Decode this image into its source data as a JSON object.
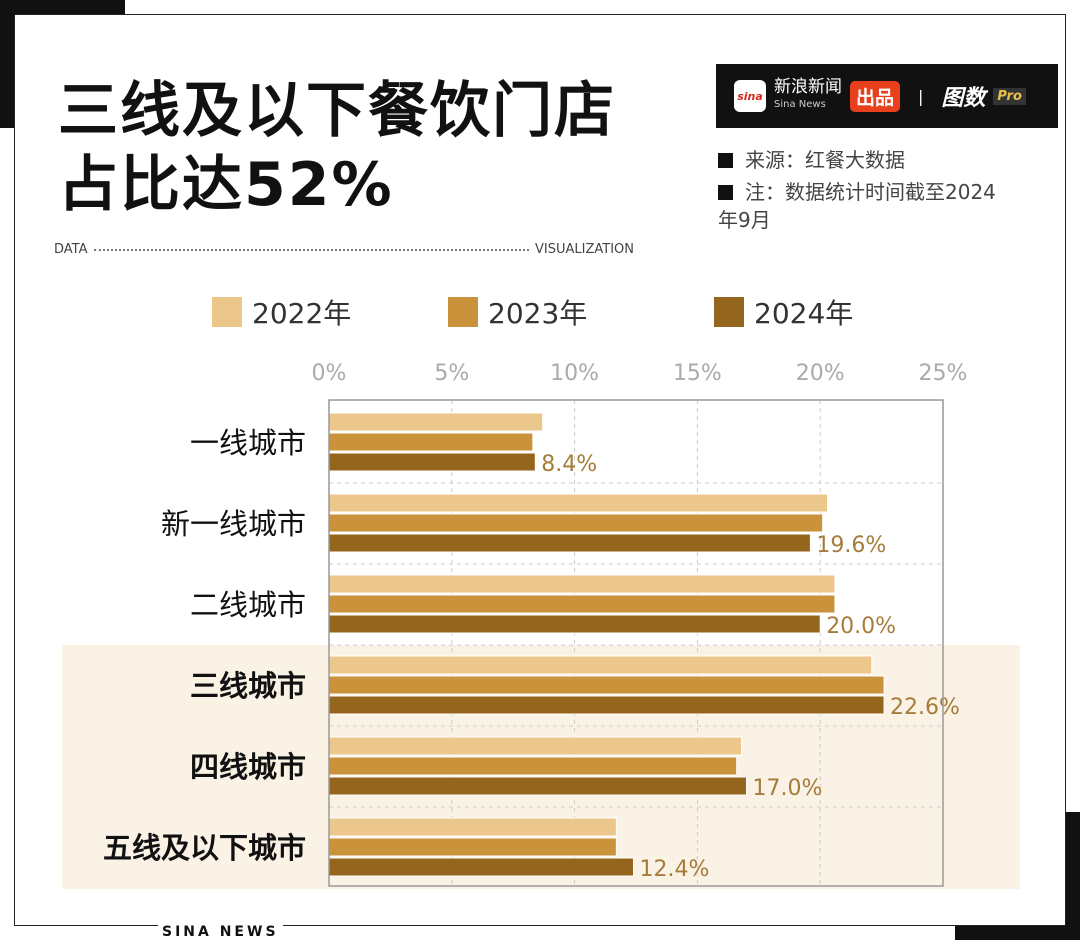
{
  "title_lines": [
    "三线及以下餐饮门店",
    "占比达52%"
  ],
  "data_label": "DATA",
  "visualization_label": "VISUALIZATION",
  "brand": {
    "sina_logo": "sina",
    "name_cn": "新浪新闻",
    "name_en": "Sina News",
    "badge": "出品",
    "sep": "|",
    "partner": "图数",
    "partner_suffix": "Pro"
  },
  "notes": [
    "来源：红餐大数据",
    "注：数据统计时间截至2024",
    "年9月"
  ],
  "footer": "SINA NEWS",
  "colors": {
    "2022年": "#ecc78c",
    "2023年": "#c9923b",
    "2024年": "#94651c",
    "label": "#a67c3a",
    "highlight_band": "#fbf2e6"
  },
  "chart_data": {
    "type": "bar",
    "orientation": "horizontal",
    "categories": [
      "一线城市",
      "新一线城市",
      "二线城市",
      "三线城市",
      "四线城市",
      "五线及以下城市"
    ],
    "highlighted_categories": [
      "三线城市",
      "四线城市",
      "五线及以下城市"
    ],
    "series": [
      {
        "name": "2022年",
        "values": [
          8.7,
          20.3,
          20.6,
          22.1,
          16.8,
          11.7
        ]
      },
      {
        "name": "2023年",
        "values": [
          8.3,
          20.1,
          20.6,
          22.6,
          16.6,
          11.7
        ]
      },
      {
        "name": "2024年",
        "values": [
          8.4,
          19.6,
          20.0,
          22.6,
          17.0,
          12.4
        ]
      }
    ],
    "data_labels": [
      "8.4%",
      "19.6%",
      "20.0%",
      "22.6%",
      "17.0%",
      "12.4%"
    ],
    "xlim": [
      0,
      25
    ],
    "xticks": [
      "0%",
      "5%",
      "10%",
      "15%",
      "20%",
      "25%"
    ],
    "grid": true,
    "legend": "top"
  }
}
